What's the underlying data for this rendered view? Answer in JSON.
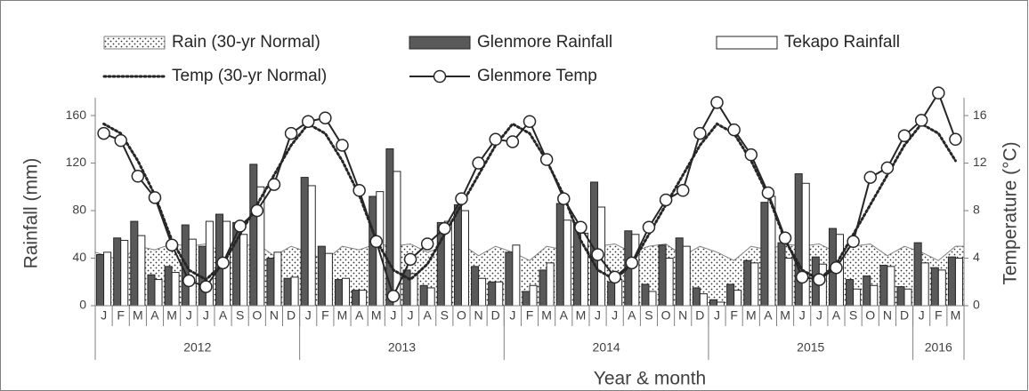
{
  "chart_data": {
    "type": "combo",
    "groups": [
      {
        "label": "2012",
        "months": [
          "J",
          "F",
          "M",
          "A",
          "M",
          "J",
          "J",
          "A",
          "S",
          "O",
          "N",
          "D"
        ]
      },
      {
        "label": "2013",
        "months": [
          "J",
          "F",
          "M",
          "A",
          "M",
          "J",
          "J",
          "A",
          "S",
          "O",
          "N",
          "D"
        ]
      },
      {
        "label": "2014",
        "months": [
          "J",
          "F",
          "M",
          "A",
          "M",
          "J",
          "J",
          "A",
          "S",
          "O",
          "N",
          "D"
        ]
      },
      {
        "label": "2015",
        "months": [
          "J",
          "F",
          "M",
          "A",
          "M",
          "J",
          "J",
          "A",
          "S",
          "O",
          "N",
          "D"
        ]
      },
      {
        "label": "2016",
        "months": [
          "J",
          "F",
          "M"
        ]
      }
    ],
    "x_label": "Year & month",
    "y_label": "Rainfall (mm)",
    "y2_label": "Temperature (°C)",
    "ylim": [
      0,
      175
    ],
    "yticks": [
      0,
      40,
      80,
      120,
      160
    ],
    "y2lim": [
      0,
      17.5
    ],
    "y2ticks": [
      0,
      4,
      8,
      12,
      16
    ],
    "series": [
      {
        "name": "Rain (30-yr Normal)",
        "kind": "area",
        "color": "#000000",
        "values": [
          45,
          38,
          50,
          47,
          52,
          50,
          52,
          45,
          50,
          52,
          42,
          50,
          45,
          38,
          50,
          47,
          52,
          50,
          52,
          45,
          50,
          52,
          42,
          50,
          45,
          38,
          50,
          47,
          52,
          50,
          52,
          45,
          50,
          52,
          42,
          50,
          45,
          38,
          50,
          47,
          52,
          50,
          52,
          45,
          50,
          52,
          42,
          50,
          45,
          38,
          50
        ]
      },
      {
        "name": "Glenmore Rainfall",
        "kind": "bar",
        "color": "#595959",
        "values": [
          43,
          57,
          71,
          26,
          33,
          68,
          50,
          77,
          70,
          119,
          40,
          23,
          108,
          50,
          22,
          13,
          92,
          132,
          30,
          17,
          70,
          85,
          33,
          20,
          45,
          12,
          30,
          86,
          70,
          104,
          20,
          63,
          18,
          51,
          57,
          15,
          5,
          18,
          38,
          87,
          53,
          111,
          41,
          65,
          22,
          25,
          34,
          16,
          53,
          32,
          41
        ]
      },
      {
        "name": "Tekapo Rainfall",
        "kind": "bar",
        "color": "#ffffff",
        "values": [
          45,
          55,
          59,
          22,
          28,
          56,
          71,
          71,
          60,
          100,
          45,
          24,
          101,
          44,
          23,
          13,
          96,
          113,
          27,
          15,
          71,
          80,
          23,
          20,
          51,
          17,
          36,
          72,
          61,
          83,
          22,
          60,
          12,
          40,
          50,
          10,
          3,
          13,
          36,
          92,
          40,
          103,
          35,
          60,
          14,
          17,
          33,
          14,
          36,
          30,
          40
        ]
      },
      {
        "name": "Temp (30-yr Normal)",
        "kind": "line",
        "style": "dotted",
        "axis": "y2",
        "color": "#262626",
        "values": [
          15.3,
          14.5,
          12.2,
          9.3,
          5.5,
          3.0,
          2.2,
          3.5,
          6.0,
          8.5,
          11.0,
          13.5,
          15.3,
          14.5,
          12.2,
          9.3,
          5.5,
          3.0,
          2.2,
          3.5,
          6.0,
          8.5,
          11.0,
          13.5,
          15.3,
          14.5,
          12.2,
          9.3,
          5.5,
          3.0,
          2.2,
          3.5,
          6.0,
          8.5,
          11.0,
          13.5,
          15.3,
          14.5,
          12.2,
          9.3,
          5.5,
          3.0,
          2.2,
          3.5,
          6.0,
          8.5,
          11.0,
          13.5,
          15.3,
          14.5,
          12.2
        ]
      },
      {
        "name": "Glenmore Temp",
        "kind": "line",
        "style": "markers",
        "axis": "y2",
        "color": "#262626",
        "values": [
          14.5,
          13.9,
          10.9,
          9.1,
          5.1,
          2.1,
          1.6,
          3.6,
          6.7,
          8.0,
          10.2,
          14.5,
          15.5,
          15.8,
          13.5,
          9.7,
          5.4,
          0.8,
          3.9,
          5.2,
          6.5,
          9.0,
          12.0,
          14.0,
          13.8,
          15.5,
          12.3,
          9.0,
          6.6,
          4.3,
          2.4,
          3.6,
          6.6,
          8.9,
          9.7,
          14.5,
          17.1,
          14.8,
          12.7,
          9.5,
          5.7,
          2.4,
          2.2,
          3.2,
          5.4,
          10.8,
          11.6,
          14.3,
          15.6,
          17.9,
          14.0
        ]
      }
    ]
  }
}
